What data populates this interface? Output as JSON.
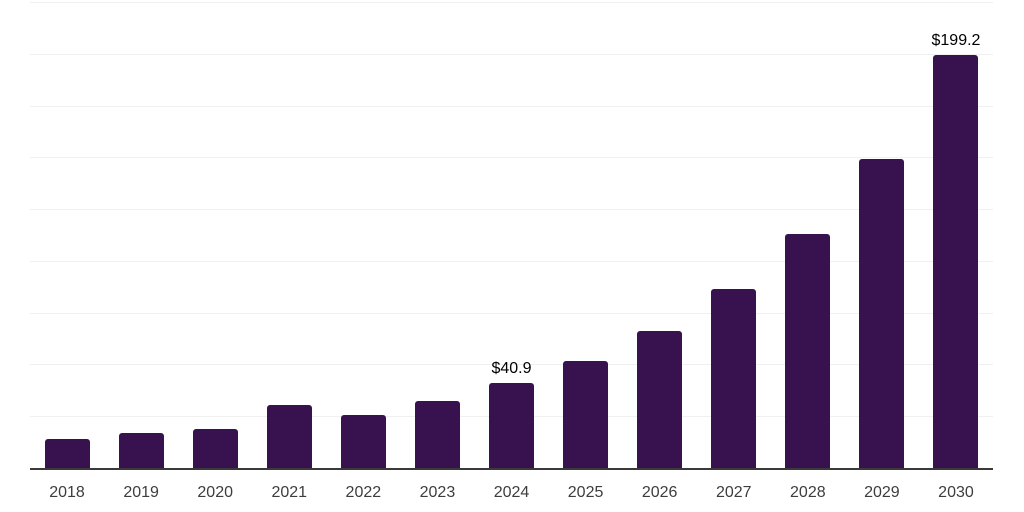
{
  "chart_data": {
    "type": "bar",
    "title": "",
    "xlabel": "",
    "ylabel": "",
    "categories": [
      "2018",
      "2019",
      "2020",
      "2021",
      "2022",
      "2023",
      "2024",
      "2025",
      "2026",
      "2027",
      "2028",
      "2029",
      "2030"
    ],
    "values": [
      13.9,
      17.0,
      18.6,
      30.2,
      25.8,
      32.3,
      40.9,
      51.9,
      66.3,
      86.3,
      112.8,
      149.0,
      199.2
    ],
    "bar_labels": [
      "",
      "",
      "",
      "",
      "",
      "",
      "$40.9",
      "",
      "",
      "",
      "",
      "",
      "$199.2"
    ],
    "ylim": [
      0,
      225
    ],
    "gridline_step": 25,
    "grid": "horizontal-only",
    "y_axis_labels_visible": false,
    "legend": "none",
    "colors": {
      "bar": "#37124E",
      "axis": "#3a3a3a",
      "gridline": "#f0f0f0",
      "tick_label": "#3d3d3d",
      "value_label": "#000000",
      "background": "#ffffff"
    }
  }
}
